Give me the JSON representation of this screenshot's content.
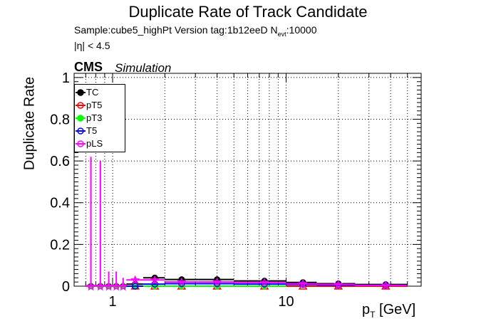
{
  "title": "Duplicate Rate of Track Candidate",
  "subtitle": {
    "sample": "Sample:cube5_highPt   Version tag:1b12eeD  N",
    "sub": "evt",
    "events": ":10000",
    "eta_cut": "|η| < 4.5"
  },
  "cms_label": "CMS",
  "sim_label": "Simulation",
  "chart_data": {
    "type": "scatter",
    "title": "Duplicate Rate of Track Candidate",
    "xlabel": "p",
    "xlabel_sub": "T",
    "xlabel_unit": " [GeV]",
    "ylabel": "Duplicate Rate",
    "x_scale": "log",
    "xlim": [
      0.6,
      60
    ],
    "ylim": [
      0,
      1.02
    ],
    "x_ticks": [
      {
        "value": 1,
        "label": "1"
      },
      {
        "value": 10,
        "label": "10"
      }
    ],
    "y_ticks": [
      {
        "value": 0,
        "label": "0"
      },
      {
        "value": 0.2,
        "label": "0.2"
      },
      {
        "value": 0.4,
        "label": "0.4"
      },
      {
        "value": 0.6,
        "label": "0.6"
      },
      {
        "value": 0.8,
        "label": "0.8"
      },
      {
        "value": 1,
        "label": "1"
      }
    ],
    "grid": true,
    "legend_position": "top-left",
    "series": [
      {
        "name": "TC",
        "color": "#000000",
        "marker": "filled-circle",
        "points": [
          {
            "x": 0.75,
            "xlo": 0.7,
            "xhi": 0.8,
            "y": 0,
            "err": 0
          },
          {
            "x": 0.85,
            "xlo": 0.8,
            "xhi": 0.9,
            "y": 0,
            "err": 0
          },
          {
            "x": 0.95,
            "xlo": 0.9,
            "xhi": 1.0,
            "y": 0,
            "err": 0
          },
          {
            "x": 1.05,
            "xlo": 1.0,
            "xhi": 1.1,
            "y": 0,
            "err": 0
          },
          {
            "x": 1.15,
            "xlo": 1.1,
            "xhi": 1.2,
            "y": 0,
            "err": 0
          },
          {
            "x": 1.35,
            "xlo": 1.2,
            "xhi": 1.5,
            "y": 0.01,
            "err": 0.01
          },
          {
            "x": 1.75,
            "xlo": 1.5,
            "xhi": 2.0,
            "y": 0.04,
            "err": 0.008
          },
          {
            "x": 2.5,
            "xlo": 2.0,
            "xhi": 3.0,
            "y": 0.032,
            "err": 0.005
          },
          {
            "x": 4.0,
            "xlo": 3.0,
            "xhi": 5.0,
            "y": 0.032,
            "err": 0.004
          },
          {
            "x": 7.5,
            "xlo": 5.0,
            "xhi": 10.0,
            "y": 0.025,
            "err": 0.004
          },
          {
            "x": 12.5,
            "xlo": 10.0,
            "xhi": 15.0,
            "y": 0.018,
            "err": 0.004
          },
          {
            "x": 20.0,
            "xlo": 15.0,
            "xhi": 25.0,
            "y": 0.012,
            "err": 0.003
          },
          {
            "x": 37.5,
            "xlo": 25.0,
            "xhi": 50.0,
            "y": 0.008,
            "err": 0.003
          }
        ]
      },
      {
        "name": "pT5",
        "color": "#ff0000",
        "marker": "open-triangle",
        "points": [
          {
            "x": 1.35,
            "xlo": 1.2,
            "xhi": 1.5,
            "y": 0.0,
            "err": 0
          },
          {
            "x": 1.75,
            "xlo": 1.5,
            "xhi": 2.0,
            "y": 0.0,
            "err": 0
          },
          {
            "x": 2.5,
            "xlo": 2.0,
            "xhi": 3.0,
            "y": 0.0,
            "err": 0
          },
          {
            "x": 4.0,
            "xlo": 3.0,
            "xhi": 5.0,
            "y": 0.0,
            "err": 0
          },
          {
            "x": 7.5,
            "xlo": 5.0,
            "xhi": 10.0,
            "y": 0.0,
            "err": 0
          },
          {
            "x": 12.5,
            "xlo": 10.0,
            "xhi": 15.0,
            "y": 0.0,
            "err": 0
          },
          {
            "x": 20.0,
            "xlo": 15.0,
            "xhi": 25.0,
            "y": 0.0,
            "err": 0
          },
          {
            "x": 37.5,
            "xlo": 25.0,
            "xhi": 50.0,
            "y": 0.0,
            "err": 0
          }
        ]
      },
      {
        "name": "pT3",
        "color": "#00ff00",
        "marker": "filled-cross",
        "points": [
          {
            "x": 0.75,
            "xlo": 0.7,
            "xhi": 0.8,
            "y": 0,
            "err": 0
          },
          {
            "x": 0.85,
            "xlo": 0.8,
            "xhi": 0.9,
            "y": 0,
            "err": 0
          },
          {
            "x": 0.95,
            "xlo": 0.9,
            "xhi": 1.0,
            "y": 0,
            "err": 0
          },
          {
            "x": 1.05,
            "xlo": 1.0,
            "xhi": 1.1,
            "y": 0,
            "err": 0
          },
          {
            "x": 1.15,
            "xlo": 1.1,
            "xhi": 1.2,
            "y": 0,
            "err": 0
          },
          {
            "x": 1.35,
            "xlo": 1.2,
            "xhi": 1.5,
            "y": 0.0,
            "err": 0
          },
          {
            "x": 1.75,
            "xlo": 1.5,
            "xhi": 2.0,
            "y": 0.0,
            "err": 0
          },
          {
            "x": 2.5,
            "xlo": 2.0,
            "xhi": 3.0,
            "y": 0.0,
            "err": 0
          },
          {
            "x": 4.0,
            "xlo": 3.0,
            "xhi": 5.0,
            "y": 0.0,
            "err": 0
          },
          {
            "x": 7.5,
            "xlo": 5.0,
            "xhi": 10.0,
            "y": 0.0,
            "err": 0
          }
        ]
      },
      {
        "name": "T5",
        "color": "#0000ff",
        "marker": "open-circle",
        "points": [
          {
            "x": 1.35,
            "xlo": 1.2,
            "xhi": 1.5,
            "y": 0.0,
            "err": 0
          },
          {
            "x": 1.75,
            "xlo": 1.5,
            "xhi": 2.0,
            "y": 0.01,
            "err": 0.004
          },
          {
            "x": 2.5,
            "xlo": 2.0,
            "xhi": 3.0,
            "y": 0.012,
            "err": 0.003
          },
          {
            "x": 4.0,
            "xlo": 3.0,
            "xhi": 5.0,
            "y": 0.012,
            "err": 0.003
          },
          {
            "x": 7.5,
            "xlo": 5.0,
            "xhi": 10.0,
            "y": 0.01,
            "err": 0.003
          },
          {
            "x": 12.5,
            "xlo": 10.0,
            "xhi": 15.0,
            "y": 0.008,
            "err": 0.003
          },
          {
            "x": 20.0,
            "xlo": 15.0,
            "xhi": 25.0,
            "y": 0.005,
            "err": 0.002
          },
          {
            "x": 37.5,
            "xlo": 25.0,
            "xhi": 50.0,
            "y": 0.004,
            "err": 0.002
          }
        ]
      },
      {
        "name": "pLS",
        "color": "#ff00ff",
        "marker": "open-star",
        "points": [
          {
            "x": 0.75,
            "xlo": 0.7,
            "xhi": 0.8,
            "y": 0,
            "err": 0.62
          },
          {
            "x": 0.85,
            "xlo": 0.8,
            "xhi": 0.9,
            "y": 0,
            "err": 0.6
          },
          {
            "x": 0.95,
            "xlo": 0.9,
            "xhi": 1.0,
            "y": 0,
            "err": 0.07
          },
          {
            "x": 1.05,
            "xlo": 1.0,
            "xhi": 1.1,
            "y": 0,
            "err": 0.07
          },
          {
            "x": 1.15,
            "xlo": 1.1,
            "xhi": 1.2,
            "y": 0,
            "err": 0.04
          },
          {
            "x": 1.35,
            "xlo": 1.2,
            "xhi": 1.5,
            "y": 0.03,
            "err": 0.015
          },
          {
            "x": 1.75,
            "xlo": 1.5,
            "xhi": 2.0,
            "y": 0.03,
            "err": 0.008
          },
          {
            "x": 2.5,
            "xlo": 2.0,
            "xhi": 3.0,
            "y": 0.02,
            "err": 0.005
          },
          {
            "x": 4.0,
            "xlo": 3.0,
            "xhi": 5.0,
            "y": 0.02,
            "err": 0.004
          },
          {
            "x": 7.5,
            "xlo": 5.0,
            "xhi": 10.0,
            "y": 0.018,
            "err": 0.004
          },
          {
            "x": 12.5,
            "xlo": 10.0,
            "xhi": 15.0,
            "y": 0.012,
            "err": 0.004
          },
          {
            "x": 20.0,
            "xlo": 15.0,
            "xhi": 25.0,
            "y": 0.008,
            "err": 0.003
          },
          {
            "x": 37.5,
            "xlo": 25.0,
            "xhi": 50.0,
            "y": 0.004,
            "err": 0.002
          }
        ]
      }
    ]
  }
}
